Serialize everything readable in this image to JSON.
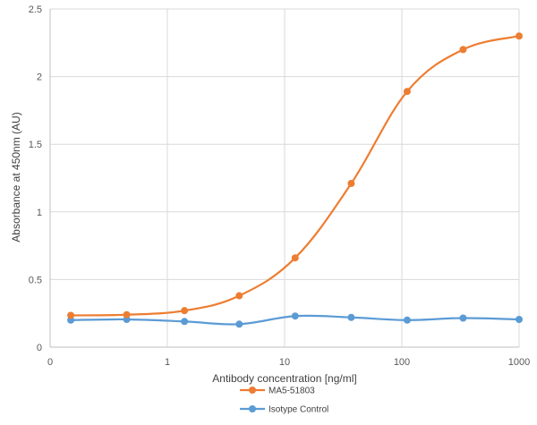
{
  "chart_data": {
    "type": "line",
    "xscale": "log",
    "xlabel": "Antibody concentration [ng/ml]",
    "ylabel": "Absorbance at 450nm (AU)",
    "xlim": [
      0.1,
      1000
    ],
    "ylim": [
      0,
      2.5
    ],
    "x_tick_labels": [
      "0",
      "1",
      "10",
      "100",
      "1000"
    ],
    "y_tick_labels": [
      "0",
      "0.5",
      "1",
      "1.5",
      "2",
      "2.5"
    ],
    "grid": true,
    "legend_position": "bottom-center",
    "series": [
      {
        "name": "MA5-51803",
        "color": "#ED7D31",
        "x": [
          0.15,
          0.45,
          1.4,
          4.1,
          12.3,
          37,
          111,
          333,
          1000
        ],
        "y": [
          0.235,
          0.24,
          0.27,
          0.38,
          0.66,
          1.21,
          1.89,
          2.2,
          2.3
        ]
      },
      {
        "name": "Isotype Control",
        "color": "#5B9BD5",
        "x": [
          0.15,
          0.45,
          1.4,
          4.1,
          12.3,
          37,
          111,
          333,
          1000
        ],
        "y": [
          0.2,
          0.205,
          0.19,
          0.17,
          0.23,
          0.22,
          0.2,
          0.215,
          0.205
        ]
      }
    ]
  }
}
